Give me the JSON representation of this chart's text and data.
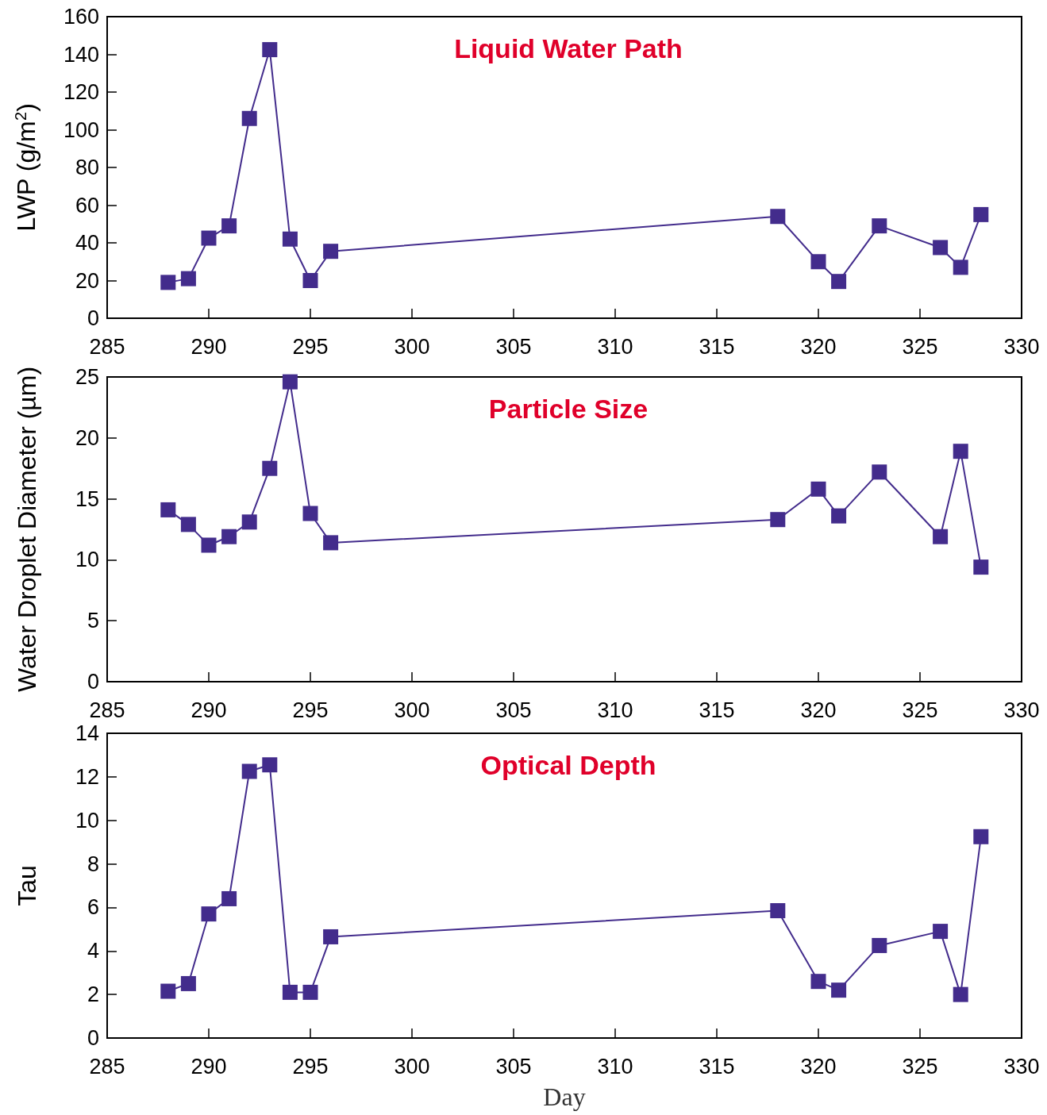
{
  "chart_data": [
    {
      "type": "line",
      "title": "Liquid Water Path",
      "ylabel": "LWP (g/m$^{2}$)",
      "color": "#432c8c",
      "marker": "square",
      "x": [
        288,
        289,
        290,
        291,
        292,
        293,
        294,
        295,
        296,
        318,
        320,
        321,
        323,
        326,
        327,
        328
      ],
      "values": [
        19,
        21,
        42.5,
        49,
        106,
        142.5,
        42,
        20,
        35.5,
        54,
        30,
        19.5,
        49,
        37.5,
        27,
        55
      ],
      "xlim": [
        285,
        330
      ],
      "xticks": [
        285,
        290,
        295,
        300,
        305,
        310,
        315,
        320,
        325,
        330
      ],
      "ylim": [
        0,
        160
      ],
      "yticks": [
        0,
        20,
        40,
        60,
        80,
        100,
        120,
        140,
        160
      ]
    },
    {
      "type": "line",
      "title": "Particle Size",
      "ylabel": "Water Droplet Diameter (µm)",
      "color": "#432c8c",
      "marker": "square",
      "x": [
        288,
        289,
        290,
        291,
        292,
        293,
        294,
        295,
        296,
        318,
        320,
        321,
        323,
        326,
        327,
        328
      ],
      "values": [
        14.1,
        12.9,
        11.2,
        11.9,
        13.1,
        17.5,
        24.6,
        13.8,
        11.4,
        13.3,
        15.8,
        13.6,
        17.2,
        11.9,
        18.9,
        9.4
      ],
      "xlim": [
        285,
        330
      ],
      "xticks": [
        285,
        290,
        295,
        300,
        305,
        310,
        315,
        320,
        325,
        330
      ],
      "ylim": [
        0,
        25
      ],
      "yticks": [
        0,
        5,
        10,
        15,
        20,
        25
      ]
    },
    {
      "type": "line",
      "title": "Optical Depth",
      "ylabel": "Tau",
      "xlabel": "Day",
      "color": "#432c8c",
      "marker": "square",
      "x": [
        288,
        289,
        290,
        291,
        292,
        293,
        294,
        295,
        296,
        318,
        320,
        321,
        323,
        326,
        327,
        328
      ],
      "values": [
        2.15,
        2.5,
        5.7,
        6.4,
        12.25,
        12.55,
        2.1,
        2.1,
        4.65,
        5.85,
        2.6,
        2.2,
        4.25,
        4.9,
        2.0,
        9.25
      ],
      "xlim": [
        285,
        330
      ],
      "xticks": [
        285,
        290,
        295,
        300,
        305,
        310,
        315,
        320,
        325,
        330
      ],
      "ylim": [
        0,
        14
      ],
      "yticks": [
        0,
        2,
        4,
        6,
        8,
        10,
        12,
        14
      ]
    }
  ]
}
